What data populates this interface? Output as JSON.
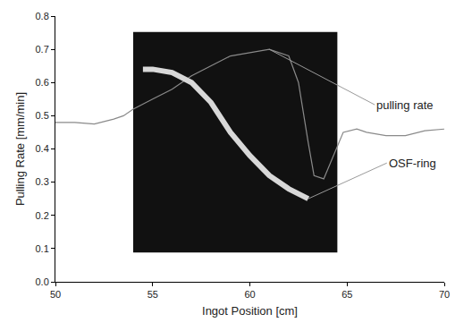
{
  "chart_data": {
    "type": "line",
    "x_label": "Ingot Position [cm]",
    "y_label": "Pulling Rate [mm/min]",
    "xlim": [
      50,
      70
    ],
    "xticks": [
      50,
      55,
      60,
      65,
      70
    ],
    "ylim": [
      0,
      0.8
    ],
    "yticks": [
      {
        "value": 0,
        "label": "0.0"
      },
      0.1,
      0.2,
      0.3,
      0.4,
      0.5,
      0.6,
      0.7,
      0.8
    ],
    "grid": false,
    "series": [
      {
        "name": "pulling rate",
        "color": "#8a8a8a",
        "line_style": "solid",
        "x": [
          50,
          51,
          52,
          53,
          53.5,
          54,
          55,
          56,
          57,
          58,
          59,
          60,
          61,
          62,
          62.5,
          63,
          63.3,
          63.8,
          64.3,
          64.8,
          65.5,
          66,
          67,
          68,
          69,
          70
        ],
        "values": [
          0.48,
          0.48,
          0.475,
          0.49,
          0.5,
          0.52,
          0.55,
          0.58,
          0.62,
          0.65,
          0.68,
          0.69,
          0.7,
          0.68,
          0.6,
          0.42,
          0.32,
          0.31,
          0.38,
          0.45,
          0.46,
          0.45,
          0.44,
          0.44,
          0.455,
          0.46
        ]
      },
      {
        "name": "OSF-ring",
        "color": "#d8d8d8",
        "line_style": "solid",
        "x": [
          54.5,
          55,
          56,
          57,
          58,
          59,
          60,
          61,
          62,
          63
        ],
        "values": [
          0.64,
          0.64,
          0.63,
          0.6,
          0.54,
          0.45,
          0.38,
          0.32,
          0.28,
          0.25
        ]
      }
    ]
  }
}
